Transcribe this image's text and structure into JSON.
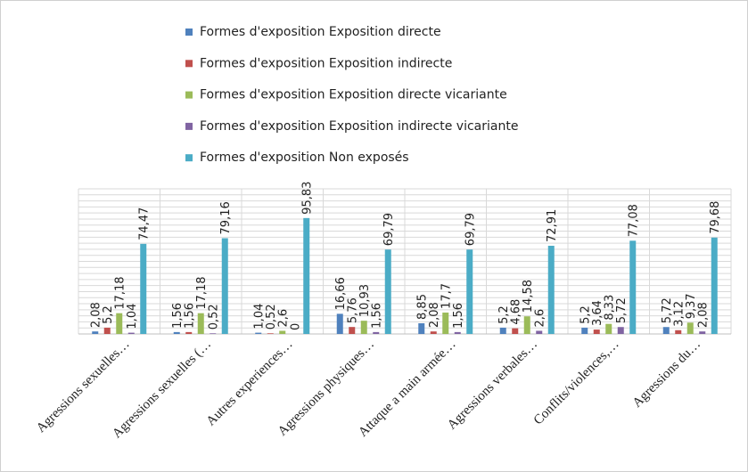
{
  "chart_data": {
    "type": "bar",
    "categories": [
      "Agressions sexuelles…",
      "Agressions sexuelles (…",
      "Autres experiences…",
      "Agressions physiques…",
      "Attaque a main armée…",
      "Agressions verbales…",
      "Conflits/violences,…",
      "Agressions du…"
    ],
    "series": [
      {
        "name": "Formes d'exposition  Exposition directe",
        "color": "#4f81bd",
        "values": [
          2.08,
          1.56,
          1.04,
          16.66,
          8.85,
          5.2,
          5.2,
          5.72
        ],
        "value_labels": [
          "2,08",
          "1,56",
          "1,04",
          "16,66",
          "8,85",
          "5,2",
          "5,2",
          "5,72"
        ]
      },
      {
        "name": "Formes d'exposition  Exposition indirecte",
        "color": "#c0504d",
        "values": [
          5.2,
          1.56,
          0.52,
          5.76,
          2.08,
          4.68,
          3.64,
          3.12
        ],
        "value_labels": [
          "5,2",
          "1,56",
          "0,52",
          "5,76",
          "2,08",
          "4,68",
          "3,64",
          "3,12"
        ]
      },
      {
        "name": "Formes d'exposition  Exposition directe vicariante",
        "color": "#9bbb59",
        "values": [
          17.18,
          17.18,
          2.6,
          10.93,
          17.7,
          14.58,
          8.33,
          9.37
        ],
        "value_labels": [
          "17,18",
          "17,18",
          "2,6",
          "10,93",
          "17,7",
          "14,58",
          "8,33",
          "9,37"
        ]
      },
      {
        "name": "Formes d'exposition  Exposition indirecte vicariante",
        "color": "#8064a2",
        "values": [
          1.04,
          0.52,
          0,
          1.56,
          1.56,
          2.6,
          5.72,
          2.08
        ],
        "value_labels": [
          "1,04",
          "0,52",
          "0",
          "1,56",
          "1,56",
          "2,6",
          "5,72",
          "2,08"
        ]
      },
      {
        "name": "Formes d'exposition  Non exposés",
        "color": "#4bacc6",
        "values": [
          74.47,
          79.16,
          95.83,
          69.79,
          69.79,
          72.91,
          77.08,
          79.68
        ],
        "value_labels": [
          "74,47",
          "79,16",
          "95,83",
          "69,79",
          "69,79",
          "72,91",
          "77,08",
          "79,68"
        ]
      }
    ],
    "ylim": [
      0,
      120
    ],
    "yticks": [
      0,
      5,
      10,
      15,
      20,
      25,
      30,
      35,
      40,
      45,
      50,
      55,
      60,
      65,
      70,
      75,
      80,
      85,
      90,
      95,
      100,
      105,
      110,
      115,
      120
    ],
    "grid": true
  }
}
